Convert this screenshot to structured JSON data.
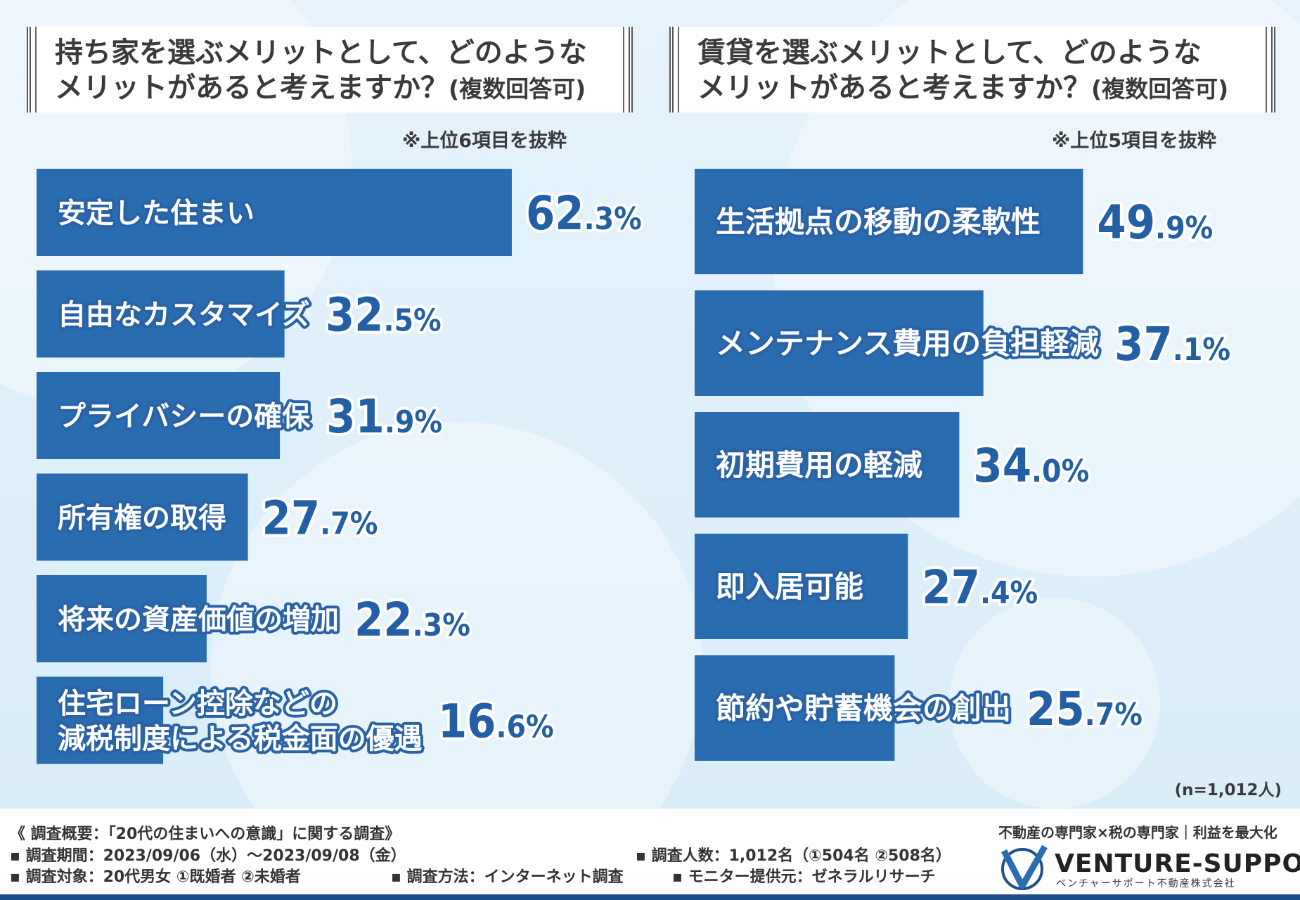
{
  "left": {
    "title_line1": "持ち家を選ぶメリットとして、どのような",
    "title_line2": "メリットがあると考えますか？",
    "title_suffix": "(複数回答可)",
    "note": "※上位6項目を抜粋"
  },
  "right": {
    "title_line1": "賃貸を選ぶメリットとして、どのような",
    "title_line2": "メリットがあると考えますか？",
    "title_suffix": "(複数回答可)",
    "note": "※上位5項目を抜粋"
  },
  "sample_size": "(n=1,012人)",
  "footer": {
    "heading": "《 調査概要：「20代の住まいへの意識」に関する調査》",
    "period": "▪ 調査期間：2023/09/06（水）～2023/09/08（金）",
    "target": "▪ 調査対象：20代男女 ①既婚者 ②未婚者",
    "method": "▪ 調査方法：インターネット調査",
    "count": "▪ 調査人数：1,012名（①504名 ②508名）",
    "monitor": "▪ モニター提供元：ゼネラルリサーチ"
  },
  "logo": {
    "tagline": "不動産の専門家×税の専門家｜利益を最大化",
    "name": "VENTURE-SUPPORT",
    "subname": "ベンチャーサポート不動産株式会社"
  },
  "colors": {
    "bar": "#2a6cb0",
    "value": "#235fa5",
    "background": "#dceefa"
  },
  "chart_data": [
    {
      "type": "bar",
      "orientation": "horizontal",
      "title": "持ち家を選ぶメリットとして、どのようなメリットがあると考えますか？(複数回答可)",
      "categories": [
        "安定した住まい",
        "自由なカスタマイズ",
        "プライバシーの確保",
        "所有権の取得",
        "将来の資産価値の増加",
        "住宅ローン控除などの\n減税制度による税金面の優遇"
      ],
      "values": [
        62.3,
        32.5,
        31.9,
        27.7,
        22.3,
        16.6
      ],
      "unit": "%",
      "xlim": [
        0,
        100
      ]
    },
    {
      "type": "bar",
      "orientation": "horizontal",
      "title": "賃貸を選ぶメリットとして、どのようなメリットがあると考えますか？(複数回答可)",
      "categories": [
        "生活拠点の移動の柔軟性",
        "メンテナンス費用の負担軽減",
        "初期費用の軽減",
        "即入居可能",
        "節約や貯蓄機会の創出"
      ],
      "values": [
        49.9,
        37.1,
        34.0,
        27.4,
        25.7
      ],
      "unit": "%",
      "xlim": [
        0,
        100
      ]
    }
  ]
}
